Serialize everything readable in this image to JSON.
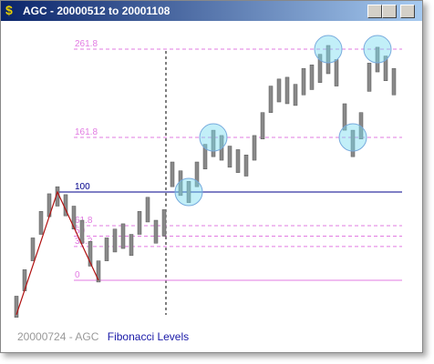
{
  "window": {
    "title": "AGC - 20000512 to 20001108"
  },
  "chart_data": {
    "type": "range-bar",
    "ylim": [
      -49.5,
      290.7
    ],
    "levels": [
      0,
      38.2,
      50,
      61.8,
      100,
      161.8,
      261.8
    ],
    "level_color": "#e27be2",
    "bar_color": "#8a8a8a",
    "zigzag": [
      -39,
      100,
      0
    ],
    "zigzag_color": "#b01010",
    "high": [
      -18,
      12,
      48,
      78,
      98,
      106,
      97,
      84,
      68,
      44,
      22,
      48,
      58,
      64,
      52,
      78,
      94,
      68,
      80,
      134,
      124,
      112,
      134,
      154,
      170,
      164,
      152,
      148,
      142,
      164,
      190,
      220,
      228,
      230,
      222,
      240,
      244,
      256,
      266,
      250,
      200,
      170,
      190,
      246,
      264,
      254,
      240
    ],
    "low": [
      -42,
      -12,
      22,
      52,
      72,
      84,
      73,
      58,
      42,
      16,
      -2,
      22,
      32,
      36,
      28,
      52,
      66,
      42,
      50,
      106,
      96,
      88,
      106,
      126,
      140,
      136,
      128,
      122,
      118,
      136,
      160,
      190,
      202,
      200,
      198,
      210,
      216,
      224,
      234,
      220,
      170,
      140,
      160,
      214,
      236,
      226,
      210
    ]
  },
  "status": {
    "caption": "20000724 - AGC",
    "study": "Fibonacci Levels"
  }
}
